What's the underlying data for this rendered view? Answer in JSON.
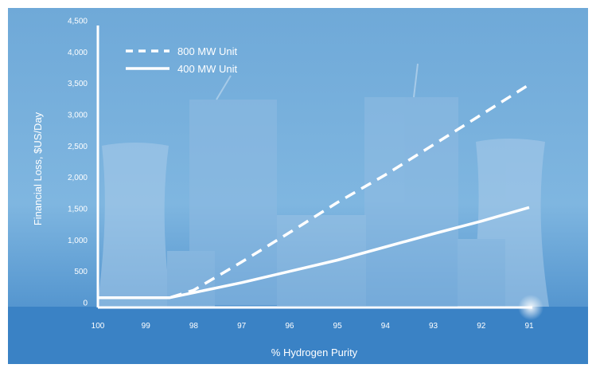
{
  "chart_data": {
    "type": "line",
    "title": "",
    "xlabel": "% Hydrogen Purity",
    "ylabel": "Financial Loss, $US/Day",
    "x_ticks": [
      100,
      99,
      98,
      97,
      96,
      95,
      94,
      93,
      92,
      91
    ],
    "y_ticks": [
      0,
      500,
      1000,
      1500,
      2000,
      2500,
      3000,
      3500,
      4000,
      4500
    ],
    "y_tick_labels": [
      "0",
      "500",
      "1,000",
      "1,500",
      "2,000",
      "2,500",
      "3,000",
      "3,500",
      "4,000",
      "4,500"
    ],
    "xlim": [
      100,
      91
    ],
    "ylim": [
      0,
      4500
    ],
    "grid": false,
    "legend_position": "top-left",
    "series": [
      {
        "name": "800 MW Unit",
        "style": "dashed",
        "points": [
          [
            100,
            80
          ],
          [
            98.5,
            80
          ],
          [
            98,
            200
          ],
          [
            97,
            650
          ],
          [
            96,
            1120
          ],
          [
            95,
            1600
          ],
          [
            94,
            2040
          ],
          [
            93,
            2520
          ],
          [
            92,
            3000
          ],
          [
            91,
            3480
          ]
        ]
      },
      {
        "name": "400 MW Unit",
        "style": "solid",
        "points": [
          [
            100,
            80
          ],
          [
            98.5,
            80
          ],
          [
            98,
            160
          ],
          [
            97,
            320
          ],
          [
            96,
            500
          ],
          [
            95,
            680
          ],
          [
            94,
            890
          ],
          [
            93,
            1100
          ],
          [
            92,
            1300
          ],
          [
            91,
            1520
          ]
        ]
      }
    ],
    "colors": {
      "background_top": "#6ea9d9",
      "background_bottom": "#3f86c8",
      "axis": "#ffffff",
      "text": "#ffffff",
      "line": "#ffffff"
    }
  }
}
